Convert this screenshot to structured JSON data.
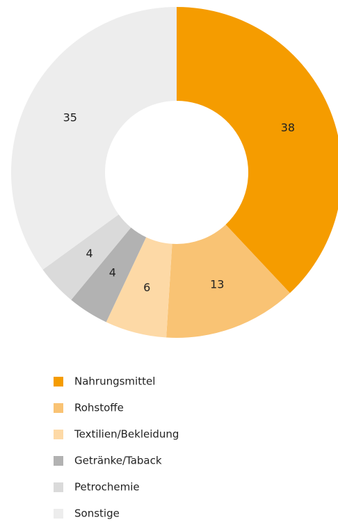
{
  "chart_data": {
    "type": "donut",
    "categories": [
      "Nahrungsmittel",
      "Rohstoffe",
      "Textilien/Bekleidung",
      "Getränke/Taback",
      "Petrochemie",
      "Sonstige"
    ],
    "values": [
      38,
      13,
      6,
      4,
      4,
      35
    ],
    "colors": [
      "#f59c00",
      "#f9c374",
      "#fdd9a6",
      "#b2b2b2",
      "#dadada",
      "#ededed"
    ]
  }
}
